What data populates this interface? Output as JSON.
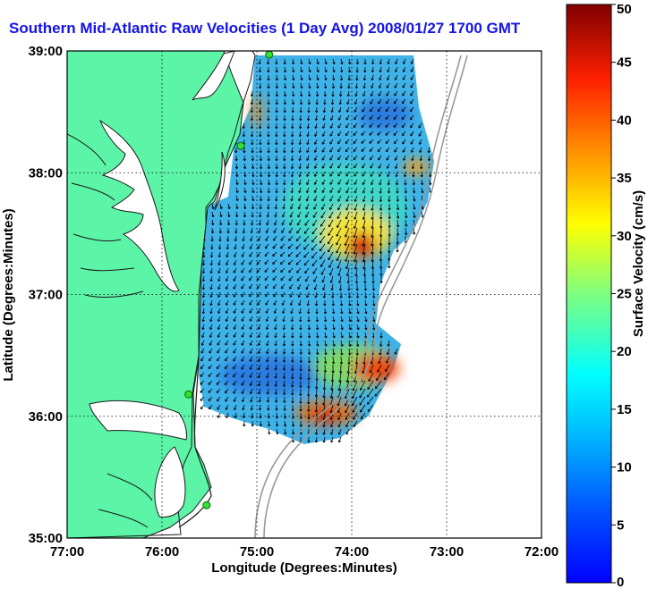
{
  "title": "Southern Mid-Atlantic Raw Velocities (1 Day Avg) 2008/01/27 1700 GMT",
  "map": {
    "xlabel": "Longitude (Degrees:Minutes)",
    "ylabel": "Latitude (Degrees:Minutes)",
    "lon_range": [
      -77,
      -72
    ],
    "lat_range": [
      35,
      39
    ],
    "lon_ticks": [
      "77:00",
      "76:00",
      "75:00",
      "74:00",
      "73:00",
      "72:00"
    ],
    "lat_ticks": [
      "35:00",
      "36:00",
      "37:00",
      "38:00",
      "39:00"
    ],
    "grid": "dotted",
    "land_color": "#5cf5a8",
    "ocean_color": "#ffffff",
    "radar_sites": [
      {
        "lon": -74.87,
        "lat": 38.97
      },
      {
        "lon": -75.17,
        "lat": 38.22
      },
      {
        "lon": -75.72,
        "lat": 36.18
      },
      {
        "lon": -75.53,
        "lat": 35.27
      }
    ]
  },
  "colorbar": {
    "label": "Surface Velocity (cm/s)",
    "min": 0,
    "max": 50,
    "ticks": [
      "0",
      "5",
      "10",
      "15",
      "20",
      "25",
      "30",
      "35",
      "40",
      "45",
      "50"
    ],
    "colormap": "jet"
  }
}
